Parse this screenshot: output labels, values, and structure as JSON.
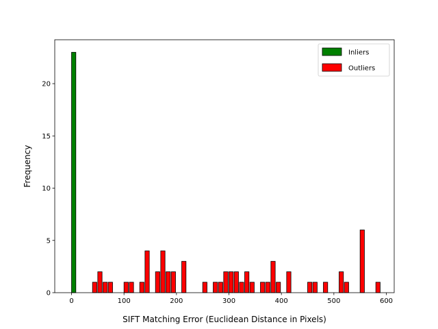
{
  "chart_data": {
    "type": "bar",
    "xlabel": "SIFT Matching Error (Euclidean Distance in Pixels)",
    "ylabel": "Frequency",
    "xlim": [
      -32,
      615
    ],
    "ylim": [
      0,
      24.2
    ],
    "xticks": [
      0,
      100,
      200,
      300,
      400,
      500,
      600
    ],
    "yticks": [
      0,
      5,
      10,
      15,
      20
    ],
    "bin_width": 10,
    "grid": false,
    "legend_position": "top-right",
    "series": [
      {
        "name": "Inliers",
        "color": "#008000",
        "bins": [
          {
            "x": 0,
            "count": 23
          }
        ]
      },
      {
        "name": "Outliers",
        "color": "#ff0000",
        "bins": [
          {
            "x": 40,
            "count": 1
          },
          {
            "x": 50,
            "count": 2
          },
          {
            "x": 60,
            "count": 1
          },
          {
            "x": 70,
            "count": 1
          },
          {
            "x": 100,
            "count": 1
          },
          {
            "x": 110,
            "count": 1
          },
          {
            "x": 130,
            "count": 1
          },
          {
            "x": 140,
            "count": 4
          },
          {
            "x": 160,
            "count": 2
          },
          {
            "x": 170,
            "count": 4
          },
          {
            "x": 180,
            "count": 2
          },
          {
            "x": 190,
            "count": 2
          },
          {
            "x": 210,
            "count": 3
          },
          {
            "x": 250,
            "count": 1
          },
          {
            "x": 270,
            "count": 1
          },
          {
            "x": 280,
            "count": 1
          },
          {
            "x": 290,
            "count": 2
          },
          {
            "x": 300,
            "count": 2
          },
          {
            "x": 310,
            "count": 2
          },
          {
            "x": 320,
            "count": 1
          },
          {
            "x": 330,
            "count": 2
          },
          {
            "x": 340,
            "count": 1
          },
          {
            "x": 360,
            "count": 1
          },
          {
            "x": 370,
            "count": 1
          },
          {
            "x": 380,
            "count": 3
          },
          {
            "x": 390,
            "count": 1
          },
          {
            "x": 410,
            "count": 2
          },
          {
            "x": 450,
            "count": 1
          },
          {
            "x": 460,
            "count": 1
          },
          {
            "x": 480,
            "count": 1
          },
          {
            "x": 510,
            "count": 2
          },
          {
            "x": 520,
            "count": 1
          },
          {
            "x": 550,
            "count": 6
          },
          {
            "x": 580,
            "count": 1
          }
        ]
      }
    ]
  }
}
